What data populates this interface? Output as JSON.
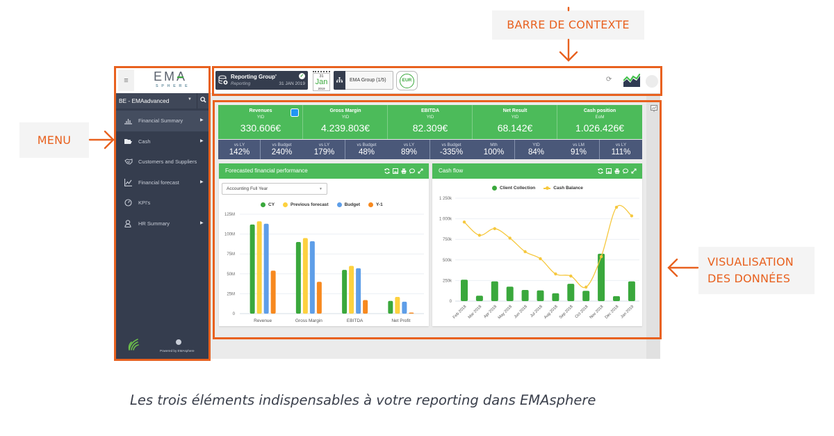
{
  "annotations": {
    "context_bar_label": "BARRE DE CONTEXTE",
    "menu_label": "MENU",
    "dataviz_label_line1": "VISUALISATION",
    "dataviz_label_line2": "DES DONNÉES",
    "caption": "Les trois éléments indispensables à votre reporting dans EMAsphere",
    "accent_color": "#e8611f"
  },
  "sidebar": {
    "menu_icon": "hamburger-icon",
    "logo_top": "EMA",
    "logo_bottom": "SPHERE",
    "entity_select": "BE - EMAadvanced",
    "items": [
      {
        "label": "Financial Summary",
        "icon": "bar-chart-icon",
        "has_submenu": true,
        "active": true
      },
      {
        "label": "Cash",
        "icon": "folder-open-icon",
        "has_submenu": true,
        "active": false
      },
      {
        "label": "Customers and Suppliers",
        "icon": "handshake-icon",
        "has_submenu": false,
        "active": false
      },
      {
        "label": "Financial forecast",
        "icon": "line-chart-icon",
        "has_submenu": true,
        "active": false
      },
      {
        "label": "KPI's",
        "icon": "gauge-icon",
        "has_submenu": false,
        "active": false
      },
      {
        "label": "HR Summary",
        "icon": "user-icon",
        "has_submenu": true,
        "active": false
      }
    ],
    "footer": {
      "powered_by": "Powered by EMAsphere"
    }
  },
  "context_bar": {
    "group": {
      "title": "Reporting Group'",
      "subtitle": "Reporting",
      "date": "31 JAN 2019",
      "status": "validated"
    },
    "calendar": {
      "day": "31",
      "month": "Jan",
      "year": "2019"
    },
    "entity_button": "EMA Group (1/5)",
    "currency": "EUR"
  },
  "kpis": [
    {
      "title": "Revenues",
      "period": "YtD",
      "value": "330.606€",
      "subs": [
        {
          "label": "vs LY",
          "value": "142%"
        },
        {
          "label": "vs Budget",
          "value": "240%"
        }
      ]
    },
    {
      "title": "Gross Margin",
      "period": "YtD",
      "value": "4.239.803€",
      "subs": [
        {
          "label": "vs LY",
          "value": "179%"
        },
        {
          "label": "vs Budget",
          "value": "48%"
        }
      ]
    },
    {
      "title": "EBITDA",
      "period": "YtD",
      "value": "82.309€",
      "subs": [
        {
          "label": "vs LY",
          "value": "89%"
        },
        {
          "label": "vs Budget",
          "value": "-335%"
        }
      ]
    },
    {
      "title": "Net Result",
      "period": "YtD",
      "value": "68.142€",
      "subs": [
        {
          "label": "Mth",
          "value": "100%"
        },
        {
          "label": "YtD",
          "value": "84%"
        }
      ]
    },
    {
      "title": "Cash position",
      "period": "EoM",
      "value": "1.026.426€",
      "subs": [
        {
          "label": "vs LM",
          "value": "91%"
        },
        {
          "label": "vs LY",
          "value": "111%"
        }
      ]
    }
  ],
  "panels": [
    {
      "title": "Forecasted financial performance",
      "dropdown": "Accounting Full Year"
    },
    {
      "title": "Cash flow"
    }
  ],
  "colors": {
    "kpi_green": "#4cbb5a",
    "kpi_navy": "#4a5879",
    "sidebar_bg": "#353d4e"
  },
  "chart_data": [
    {
      "type": "bar",
      "title": "Forecasted financial performance",
      "categories": [
        "Revenue",
        "Gross Margin",
        "EBITDA",
        "Net Profit"
      ],
      "series": [
        {
          "name": "CY",
          "color": "#3aa83c",
          "values": [
            112,
            90,
            55,
            16
          ]
        },
        {
          "name": "Previous forecast",
          "color": "#fdd13f",
          "values": [
            116,
            95,
            60,
            21
          ]
        },
        {
          "name": "Budget",
          "color": "#5e9ee8",
          "values": [
            113,
            91,
            57,
            15
          ]
        },
        {
          "name": "Y-1",
          "color": "#f7891f",
          "values": [
            54,
            40,
            17,
            1
          ]
        }
      ],
      "y_ticks": [
        {
          "value": 0,
          "label": "0"
        },
        {
          "value": 25,
          "label": "25M"
        },
        {
          "value": 50,
          "label": "50M"
        },
        {
          "value": 75,
          "label": "75M"
        },
        {
          "value": 100,
          "label": "100M"
        },
        {
          "value": 125,
          "label": "125M"
        }
      ],
      "unit": "M€",
      "ylim": [
        0,
        125
      ],
      "grid": true,
      "legend_position": "top"
    },
    {
      "type": "bar+line",
      "title": "Cash flow",
      "categories": [
        "Feb 2018",
        "Mar 2018",
        "Apr 2018",
        "May 2018",
        "Jun 2018",
        "Jul 2018",
        "Aug 2018",
        "Sep 2018",
        "Oct 2018",
        "Nov 2018",
        "Dec 2018",
        "Jan 2019"
      ],
      "series": [
        {
          "name": "Client Collection",
          "kind": "bar",
          "color": "#3aa83c",
          "values": [
            260,
            65,
            240,
            175,
            135,
            130,
            95,
            210,
            125,
            575,
            60,
            240
          ]
        },
        {
          "name": "Cash Balance",
          "kind": "line",
          "color": "#f6c83e",
          "values": [
            960,
            800,
            880,
            765,
            600,
            515,
            330,
            305,
            170,
            540,
            1140,
            1035
          ]
        }
      ],
      "y_ticks": [
        {
          "value": 0,
          "label": "0"
        },
        {
          "value": 250,
          "label": "250k"
        },
        {
          "value": 500,
          "label": "500k"
        },
        {
          "value": 750,
          "label": "750k"
        },
        {
          "value": 1000,
          "label": "1 000k"
        },
        {
          "value": 1250,
          "label": "1 250k"
        }
      ],
      "unit": "k€",
      "ylim": [
        0,
        1250
      ],
      "grid": true,
      "legend_position": "top"
    }
  ]
}
